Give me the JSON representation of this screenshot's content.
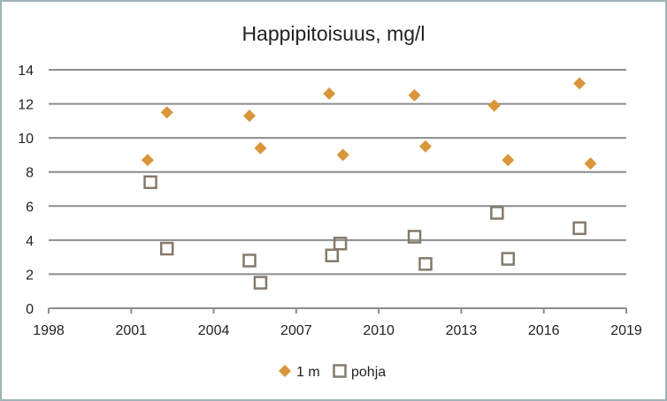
{
  "chart_data": {
    "type": "scatter",
    "title": "Happipitoisuus, mg/l",
    "xlabel": "",
    "ylabel": "",
    "xlim": [
      1998,
      2019
    ],
    "ylim": [
      0,
      14
    ],
    "xticks": [
      1998,
      2001,
      2004,
      2007,
      2010,
      2013,
      2016,
      2019
    ],
    "yticks": [
      0,
      2,
      4,
      6,
      8,
      10,
      12,
      14
    ],
    "grid": "horizontal",
    "legend": "bottom",
    "series": [
      {
        "name": "1 m",
        "marker": "diamond",
        "color": "#D9963A",
        "points": [
          [
            2001.6,
            8.7
          ],
          [
            2002.3,
            11.5
          ],
          [
            2005.3,
            11.3
          ],
          [
            2005.7,
            9.4
          ],
          [
            2008.2,
            12.6
          ],
          [
            2008.7,
            9.0
          ],
          [
            2011.3,
            12.5
          ],
          [
            2011.7,
            9.5
          ],
          [
            2014.2,
            11.9
          ],
          [
            2014.7,
            8.7
          ],
          [
            2017.3,
            13.2
          ],
          [
            2017.7,
            8.5
          ]
        ]
      },
      {
        "name": "pohja",
        "marker": "square-open",
        "color": "#85796B",
        "points": [
          [
            2001.7,
            7.4
          ],
          [
            2002.3,
            3.5
          ],
          [
            2005.3,
            2.8
          ],
          [
            2005.7,
            1.5
          ],
          [
            2008.3,
            3.1
          ],
          [
            2008.6,
            3.8
          ],
          [
            2011.3,
            4.2
          ],
          [
            2011.7,
            2.6
          ],
          [
            2014.3,
            5.6
          ],
          [
            2014.7,
            2.9
          ],
          [
            2017.3,
            4.7
          ]
        ]
      }
    ]
  }
}
